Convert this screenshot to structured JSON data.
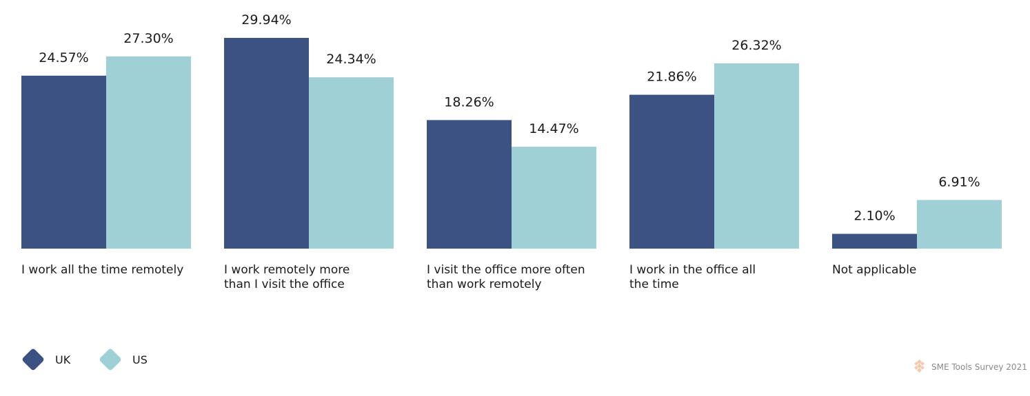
{
  "chart_data": {
    "type": "bar",
    "title": "",
    "xlabel": "",
    "ylabel": "",
    "ylim": [
      0,
      30
    ],
    "grid": false,
    "legend_position": "bottom-left",
    "categories": [
      [
        "I work all the time remotely"
      ],
      [
        "I work remotely more",
        "than I visit the office"
      ],
      [
        "I visit the office more often",
        "than work remotely"
      ],
      [
        "I work in the office all",
        "the time"
      ],
      [
        "Not applicable"
      ]
    ],
    "series": [
      {
        "name": "UK",
        "color": "#3b5282",
        "values": [
          24.57,
          29.94,
          18.26,
          21.86,
          2.1
        ],
        "labels": [
          "24.57%",
          "29.94%",
          "18.26%",
          "21.86%",
          "2.10%"
        ]
      },
      {
        "name": "US",
        "color": "#9fd0d6",
        "values": [
          27.3,
          24.34,
          14.47,
          26.32,
          6.91
        ],
        "labels": [
          "27.30%",
          "24.34%",
          "14.47%",
          "26.32%",
          "6.91%"
        ]
      }
    ]
  },
  "watermark": {
    "text": "SME Tools Survey 2021",
    "icon": "logo-diamond-cluster-icon",
    "color": "#f3c9ad"
  }
}
